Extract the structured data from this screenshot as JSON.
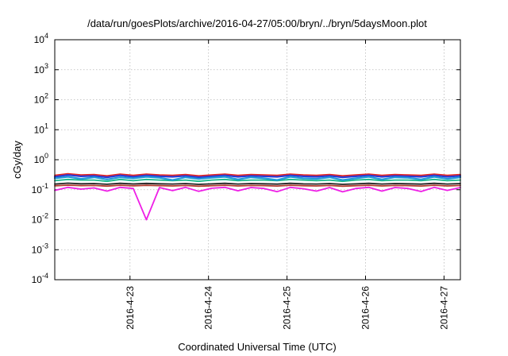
{
  "chart_data": {
    "type": "line",
    "title": "/data/run/goesPlots/archive/2016-04-27/05:00/bryn/../bryn/5daysMoon.plot",
    "xlabel": "Coordinated Universal Time (UTC)",
    "ylabel": "cGy/day",
    "yscale": "log",
    "ylim": [
      0.0001,
      10000
    ],
    "xlim": [
      "2016-04-22 01:00",
      "2016-04-27 05:00"
    ],
    "grid": true,
    "y_ticks": [
      {
        "base": "10",
        "exp": "-4",
        "value": 0.0001
      },
      {
        "base": "10",
        "exp": "-3",
        "value": 0.001
      },
      {
        "base": "10",
        "exp": "-2",
        "value": 0.01
      },
      {
        "base": "10",
        "exp": "-1",
        "value": 0.1
      },
      {
        "base": "10",
        "exp": "0",
        "value": 1
      },
      {
        "base": "10",
        "exp": "1",
        "value": 10
      },
      {
        "base": "10",
        "exp": "2",
        "value": 100
      },
      {
        "base": "10",
        "exp": "3",
        "value": 1000
      },
      {
        "base": "10",
        "exp": "4",
        "value": 10000
      }
    ],
    "x_ticks": [
      "2016-4-23",
      "2016-4-24",
      "2016-4-25",
      "2016-4-26",
      "2016-4-27"
    ],
    "x": [
      "2016-04-22 01:00",
      "2016-04-22 05:00",
      "2016-04-22 09:00",
      "2016-04-22 13:00",
      "2016-04-22 17:00",
      "2016-04-22 21:00",
      "2016-04-23 01:00",
      "2016-04-23 05:00",
      "2016-04-23 09:00",
      "2016-04-23 13:00",
      "2016-04-23 17:00",
      "2016-04-23 21:00",
      "2016-04-24 01:00",
      "2016-04-24 05:00",
      "2016-04-24 09:00",
      "2016-04-24 13:00",
      "2016-04-24 17:00",
      "2016-04-24 21:00",
      "2016-04-25 01:00",
      "2016-04-25 05:00",
      "2016-04-25 09:00",
      "2016-04-25 13:00",
      "2016-04-25 17:00",
      "2016-04-25 21:00",
      "2016-04-26 01:00",
      "2016-04-26 05:00",
      "2016-04-26 09:00",
      "2016-04-26 13:00",
      "2016-04-26 17:00",
      "2016-04-26 21:00",
      "2016-04-27 01:00",
      "2016-04-27 05:00"
    ],
    "series": [
      {
        "color": "#e8231f",
        "values": [
          0.3,
          0.34,
          0.31,
          0.32,
          0.29,
          0.33,
          0.3,
          0.33,
          0.31,
          0.3,
          0.32,
          0.29,
          0.31,
          0.33,
          0.3,
          0.32,
          0.31,
          0.3,
          0.33,
          0.31,
          0.3,
          0.32,
          0.29,
          0.31,
          0.33,
          0.3,
          0.32,
          0.31,
          0.3,
          0.33,
          0.3,
          0.32
        ]
      },
      {
        "color": "#2a3cd6",
        "values": [
          0.27,
          0.31,
          0.28,
          0.29,
          0.26,
          0.3,
          0.27,
          0.3,
          0.28,
          0.27,
          0.29,
          0.26,
          0.28,
          0.3,
          0.27,
          0.29,
          0.28,
          0.27,
          0.3,
          0.28,
          0.27,
          0.29,
          0.26,
          0.28,
          0.3,
          0.27,
          0.29,
          0.28,
          0.27,
          0.3,
          0.27,
          0.29
        ]
      },
      {
        "color": "#18b88a",
        "values": [
          0.2,
          0.22,
          0.21,
          0.21,
          0.19,
          0.22,
          0.2,
          0.22,
          0.21,
          0.2,
          0.21,
          0.19,
          0.21,
          0.22,
          0.2,
          0.21,
          0.21,
          0.2,
          0.22,
          0.21,
          0.2,
          0.21,
          0.19,
          0.21,
          0.22,
          0.2,
          0.21,
          0.21,
          0.2,
          0.22,
          0.2,
          0.21
        ]
      },
      {
        "color": "#1f9ad8",
        "values": [
          0.24,
          0.27,
          0.23,
          0.26,
          0.22,
          0.26,
          0.24,
          0.27,
          0.25,
          0.21,
          0.26,
          0.23,
          0.25,
          0.27,
          0.22,
          0.26,
          0.24,
          0.21,
          0.27,
          0.24,
          0.23,
          0.26,
          0.21,
          0.24,
          0.27,
          0.22,
          0.26,
          0.25,
          0.22,
          0.27,
          0.23,
          0.26
        ]
      },
      {
        "color": "#222222",
        "values": [
          0.155,
          0.165,
          0.158,
          0.16,
          0.152,
          0.163,
          0.156,
          0.162,
          0.158,
          0.155,
          0.16,
          0.151,
          0.157,
          0.163,
          0.155,
          0.16,
          0.158,
          0.154,
          0.163,
          0.157,
          0.155,
          0.16,
          0.151,
          0.157,
          0.163,
          0.155,
          0.16,
          0.158,
          0.154,
          0.163,
          0.155,
          0.16
        ]
      },
      {
        "color": "#b03a2e",
        "values": [
          0.135,
          0.142,
          0.137,
          0.139,
          0.132,
          0.141,
          0.135,
          0.14,
          0.137,
          0.134,
          0.139,
          0.131,
          0.136,
          0.141,
          0.134,
          0.139,
          0.137,
          0.133,
          0.141,
          0.136,
          0.134,
          0.139,
          0.131,
          0.136,
          0.141,
          0.134,
          0.139,
          0.137,
          0.133,
          0.141,
          0.134,
          0.139
        ]
      },
      {
        "color": "#ee1fe6",
        "values": [
          0.095,
          0.12,
          0.105,
          0.115,
          0.09,
          0.12,
          0.11,
          0.01,
          0.118,
          0.093,
          0.12,
          0.088,
          0.112,
          0.12,
          0.092,
          0.118,
          0.11,
          0.086,
          0.12,
          0.108,
          0.09,
          0.118,
          0.085,
          0.11,
          0.12,
          0.09,
          0.118,
          0.11,
          0.087,
          0.12,
          0.095,
          0.118
        ]
      }
    ]
  }
}
